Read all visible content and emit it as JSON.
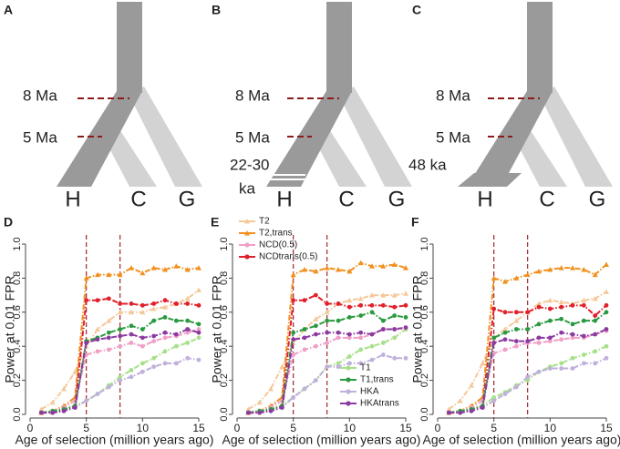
{
  "tree_panels": [
    {
      "panel": "A",
      "times": [
        "8 Ma",
        "5 Ma"
      ],
      "leaves": [
        "H",
        "C",
        "G"
      ]
    },
    {
      "panel": "B",
      "times": [
        "8 Ma",
        "5 Ma",
        "22-30",
        "ka"
      ],
      "leaves": [
        "H",
        "C",
        "G"
      ]
    },
    {
      "panel": "C",
      "times": [
        "8 Ma",
        "5 Ma",
        "48 ka"
      ],
      "leaves": [
        "H",
        "C",
        "G"
      ]
    }
  ],
  "chart_data": [
    {
      "type": "line",
      "panel": "D",
      "xlabel": "Age of selection (million years ago)",
      "ylabel": "Power at 0.01 FPR",
      "x": [
        1,
        2,
        3,
        4,
        5,
        6,
        7,
        8,
        9,
        10,
        11,
        12,
        13,
        14,
        15
      ],
      "xlim": [
        0,
        15
      ],
      "xticks": [
        0,
        5,
        10,
        15
      ],
      "ylim": [
        0,
        1
      ],
      "yticks": [
        {
          "value": 0,
          "label": "0.0"
        },
        0.2,
        0.4,
        0.6,
        0.8,
        {
          "value": 1,
          "label": "1.0"
        }
      ],
      "vlines": [
        5,
        8
      ],
      "series": [
        {
          "color": "#f5c89a",
          "marker": "triangle",
          "values": [
            0.03,
            0.07,
            0.15,
            0.25,
            0.4,
            0.5,
            0.55,
            0.6,
            0.6,
            0.6,
            0.62,
            0.63,
            0.65,
            0.68,
            0.73
          ]
        },
        {
          "color": "#f0901e",
          "marker": "triangle",
          "values": [
            0.01,
            0.02,
            0.05,
            0.1,
            0.8,
            0.82,
            0.82,
            0.82,
            0.86,
            0.83,
            0.86,
            0.85,
            0.87,
            0.85,
            0.86
          ]
        },
        {
          "color": "#f0a0c8",
          "marker": "circle",
          "values": [
            0.01,
            0.02,
            0.04,
            0.08,
            0.35,
            0.37,
            0.38,
            0.4,
            0.42,
            0.4,
            0.43,
            0.45,
            0.46,
            0.48,
            0.5
          ]
        },
        {
          "color": "#e0202a",
          "marker": "circle",
          "values": [
            0.01,
            0.01,
            0.03,
            0.05,
            0.67,
            0.67,
            0.68,
            0.65,
            0.65,
            0.64,
            0.65,
            0.67,
            0.65,
            0.65,
            0.64
          ]
        },
        {
          "color": "#a8e08a",
          "marker": "circle",
          "values": [
            0.01,
            0.02,
            0.03,
            0.05,
            0.08,
            0.12,
            0.17,
            0.22,
            0.26,
            0.3,
            0.33,
            0.37,
            0.4,
            0.42,
            0.45
          ]
        },
        {
          "color": "#2a9a40",
          "marker": "circle",
          "values": [
            0.01,
            0.02,
            0.03,
            0.05,
            0.43,
            0.45,
            0.48,
            0.5,
            0.52,
            0.5,
            0.55,
            0.57,
            0.55,
            0.55,
            0.53
          ]
        },
        {
          "color": "#c0b0dc",
          "marker": "circle",
          "values": [
            0.01,
            0.01,
            0.02,
            0.04,
            0.08,
            0.12,
            0.16,
            0.2,
            0.22,
            0.25,
            0.28,
            0.3,
            0.3,
            0.33,
            0.32
          ]
        },
        {
          "color": "#8a3aa0",
          "marker": "circle",
          "values": [
            0.01,
            0.01,
            0.02,
            0.04,
            0.42,
            0.44,
            0.45,
            0.46,
            0.47,
            0.45,
            0.46,
            0.48,
            0.47,
            0.5,
            0.48
          ]
        }
      ]
    },
    {
      "type": "line",
      "panel": "E",
      "xlabel": "Age of selection (million years ago)",
      "ylabel": "Power at 0.01 FPR",
      "x": [
        1,
        2,
        3,
        4,
        5,
        6,
        7,
        8,
        9,
        10,
        11,
        12,
        13,
        14,
        15
      ],
      "xlim": [
        0,
        15
      ],
      "xticks": [
        0,
        5,
        10,
        15
      ],
      "ylim": [
        0,
        1
      ],
      "yticks": [
        {
          "value": 0,
          "label": "0.0"
        },
        0.2,
        0.4,
        0.6,
        0.8,
        {
          "value": 1,
          "label": "1.0"
        }
      ],
      "vlines": [
        5,
        8
      ],
      "legend": [
        "top left",
        "bottom right"
      ],
      "series": [
        {
          "name": "T2",
          "color": "#f5c89a",
          "marker": "triangle",
          "values": [
            0.03,
            0.07,
            0.15,
            0.28,
            0.42,
            0.5,
            0.56,
            0.6,
            0.65,
            0.67,
            0.68,
            0.7,
            0.7,
            0.7,
            0.71
          ]
        },
        {
          "name": "T2,trans",
          "color": "#f0901e",
          "marker": "triangle",
          "values": [
            0.01,
            0.02,
            0.05,
            0.1,
            0.82,
            0.85,
            0.84,
            0.86,
            0.85,
            0.84,
            0.89,
            0.87,
            0.87,
            0.88,
            0.86
          ]
        },
        {
          "name": "NCD(0.5)",
          "color": "#f0a0c8",
          "marker": "circle",
          "values": [
            0.01,
            0.02,
            0.04,
            0.08,
            0.35,
            0.38,
            0.4,
            0.42,
            0.45,
            0.45,
            0.45,
            0.47,
            0.5,
            0.5,
            0.5
          ]
        },
        {
          "name": "NCDtrans(0.5)",
          "color": "#e0202a",
          "marker": "circle",
          "values": [
            0.01,
            0.01,
            0.03,
            0.05,
            0.67,
            0.67,
            0.7,
            0.65,
            0.65,
            0.63,
            0.64,
            0.64,
            0.64,
            0.63,
            0.64
          ]
        },
        {
          "name": "T1",
          "color": "#a8e08a",
          "marker": "circle",
          "values": [
            0.01,
            0.02,
            0.03,
            0.05,
            0.1,
            0.15,
            0.2,
            0.28,
            0.3,
            0.34,
            0.38,
            0.4,
            0.42,
            0.45,
            0.5
          ]
        },
        {
          "name": "T1,trans",
          "color": "#2a9a40",
          "marker": "circle",
          "values": [
            0.01,
            0.02,
            0.03,
            0.05,
            0.48,
            0.5,
            0.52,
            0.55,
            0.55,
            0.57,
            0.58,
            0.6,
            0.55,
            0.58,
            0.57
          ]
        },
        {
          "name": "HKA",
          "color": "#c0b0dc",
          "marker": "circle",
          "values": [
            0.01,
            0.01,
            0.02,
            0.04,
            0.1,
            0.15,
            0.2,
            0.28,
            0.28,
            0.3,
            0.3,
            0.32,
            0.35,
            0.33,
            0.33
          ]
        },
        {
          "name": "HKAtrans",
          "color": "#8a3aa0",
          "marker": "circle",
          "values": [
            0.01,
            0.01,
            0.02,
            0.04,
            0.44,
            0.45,
            0.47,
            0.48,
            0.48,
            0.47,
            0.48,
            0.47,
            0.5,
            0.5,
            0.51
          ]
        }
      ]
    },
    {
      "type": "line",
      "panel": "F",
      "xlabel": "Age of selection (million years ago)",
      "ylabel": "Power at 0.01 FPR",
      "x": [
        1,
        2,
        3,
        4,
        5,
        6,
        7,
        8,
        9,
        10,
        11,
        12,
        13,
        14,
        15
      ],
      "xlim": [
        0,
        15
      ],
      "xticks": [
        0,
        5,
        10,
        15
      ],
      "ylim": [
        0,
        1
      ],
      "yticks": [
        {
          "value": 0,
          "label": "0.0"
        },
        0.2,
        0.4,
        0.6,
        0.8,
        {
          "value": 1,
          "label": "1.0"
        }
      ],
      "vlines": [
        5,
        8
      ],
      "series": [
        {
          "color": "#f5c89a",
          "marker": "triangle",
          "values": [
            0.03,
            0.08,
            0.17,
            0.3,
            0.45,
            0.5,
            0.55,
            0.6,
            0.65,
            0.67,
            0.66,
            0.65,
            0.67,
            0.68,
            0.72
          ]
        },
        {
          "color": "#f0901e",
          "marker": "triangle",
          "values": [
            0.01,
            0.02,
            0.05,
            0.1,
            0.8,
            0.78,
            0.8,
            0.82,
            0.84,
            0.85,
            0.86,
            0.86,
            0.85,
            0.82,
            0.88
          ]
        },
        {
          "color": "#f0a0c8",
          "marker": "circle",
          "values": [
            0.01,
            0.02,
            0.04,
            0.08,
            0.36,
            0.38,
            0.4,
            0.42,
            0.42,
            0.43,
            0.44,
            0.45,
            0.45,
            0.47,
            0.49
          ]
        },
        {
          "color": "#e0202a",
          "marker": "circle",
          "values": [
            0.01,
            0.01,
            0.03,
            0.05,
            0.62,
            0.6,
            0.6,
            0.6,
            0.63,
            0.62,
            0.63,
            0.64,
            0.64,
            0.58,
            0.64
          ]
        },
        {
          "color": "#a8e08a",
          "marker": "circle",
          "values": [
            0.01,
            0.02,
            0.03,
            0.05,
            0.1,
            0.13,
            0.17,
            0.2,
            0.25,
            0.28,
            0.3,
            0.33,
            0.35,
            0.37,
            0.4
          ]
        },
        {
          "color": "#2a9a40",
          "marker": "circle",
          "values": [
            0.01,
            0.02,
            0.03,
            0.05,
            0.45,
            0.48,
            0.5,
            0.5,
            0.53,
            0.55,
            0.56,
            0.53,
            0.55,
            0.55,
            0.6
          ]
        },
        {
          "color": "#c0b0dc",
          "marker": "circle",
          "values": [
            0.01,
            0.01,
            0.02,
            0.04,
            0.08,
            0.12,
            0.16,
            0.22,
            0.25,
            0.27,
            0.27,
            0.27,
            0.3,
            0.3,
            0.33
          ]
        },
        {
          "color": "#8a3aa0",
          "marker": "circle",
          "values": [
            0.01,
            0.01,
            0.02,
            0.04,
            0.42,
            0.44,
            0.43,
            0.43,
            0.45,
            0.45,
            0.48,
            0.47,
            0.46,
            0.47,
            0.5
          ]
        }
      ]
    }
  ]
}
